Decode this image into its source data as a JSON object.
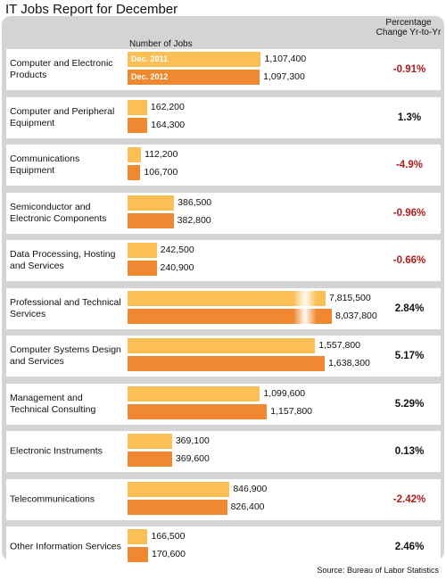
{
  "chart_data": {
    "type": "bar",
    "title": "IT Jobs Report for December",
    "xlabel": "Number of Jobs",
    "pct_header": "Percentage Change Yr-to-Yr",
    "source": "Source: Bureau of Labor Statistics",
    "series": [
      {
        "name": "Dec. 2011",
        "color": "#fbbf55"
      },
      {
        "name": "Dec. 2012",
        "color": "#ef8830"
      }
    ],
    "rows": [
      {
        "label": "Computer and Electronic Products",
        "v2011": 1107400,
        "t2011": "1,107,400",
        "v2012": 1097300,
        "t2012": "1,097,300",
        "pct": "-0.91%",
        "neg": true
      },
      {
        "label": "Computer and Peripheral Equipment",
        "v2011": 162200,
        "t2011": "162,200",
        "v2012": 164300,
        "t2012": "164,300",
        "pct": "1.3%",
        "neg": false
      },
      {
        "label": "Communications Equipment",
        "v2011": 112200,
        "t2011": "112,200",
        "v2012": 106700,
        "t2012": "106,700",
        "pct": "-4.9%",
        "neg": true
      },
      {
        "label": "Semiconductor and Electronic Components",
        "v2011": 386500,
        "t2011": "386,500",
        "v2012": 382800,
        "t2012": "382,800",
        "pct": "-0.96%",
        "neg": true
      },
      {
        "label": "Data Processing, Hosting and Services",
        "v2011": 242500,
        "t2011": "242,500",
        "v2012": 240900,
        "t2012": "240,900",
        "pct": "-0.66%",
        "neg": true
      },
      {
        "label": "Professional and Technical Services",
        "v2011": 7815500,
        "t2011": "7,815,500",
        "v2012": 8037800,
        "t2012": "8,037,800",
        "pct": "2.84%",
        "neg": false,
        "broken": true
      },
      {
        "label": "Computer Systems Design and Services",
        "v2011": 1557800,
        "t2011": "1,557,800",
        "v2012": 1638300,
        "t2012": "1,638,300",
        "pct": "5.17%",
        "neg": false
      },
      {
        "label": "Management and Technical Consulting",
        "v2011": 1099600,
        "t2011": "1,099,600",
        "v2012": 1157800,
        "t2012": "1,157,800",
        "pct": "5.29%",
        "neg": false
      },
      {
        "label": "Electronic Instruments",
        "v2011": 369100,
        "t2011": "369,100",
        "v2012": 369600,
        "t2012": "369,600",
        "pct": "0.13%",
        "neg": false
      },
      {
        "label": "Telecommunications",
        "v2011": 846900,
        "t2011": "846,900",
        "v2012": 826400,
        "t2012": "826,400",
        "pct": "-2.42%",
        "neg": true
      },
      {
        "label": "Other Information Services",
        "v2011": 166500,
        "t2011": "166,500",
        "v2012": 170600,
        "t2012": "170,600",
        "pct": "2.46%",
        "neg": false
      }
    ]
  }
}
